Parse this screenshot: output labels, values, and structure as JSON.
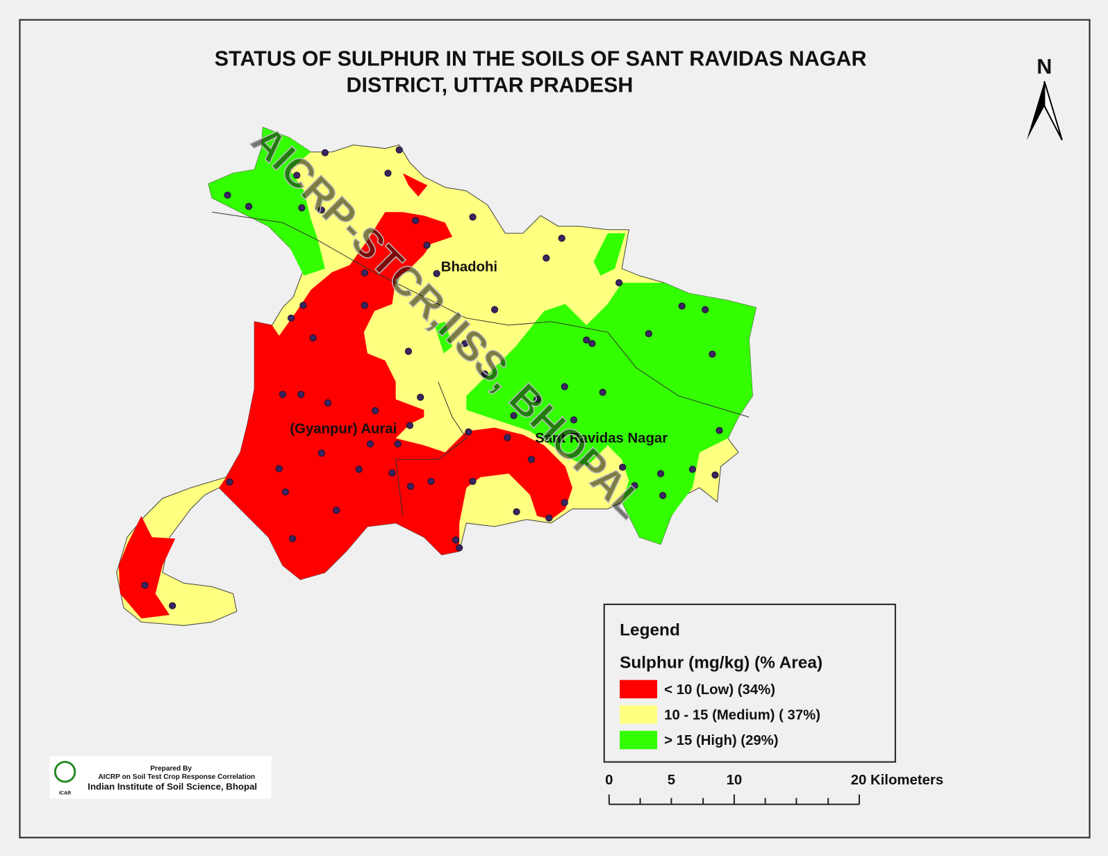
{
  "title": {
    "line1": "STATUS OF SULPHUR   IN THE  SOILS  OF SANT RAVIDAS NAGAR",
    "line2": "DISTRICT, UTTAR PRADESH"
  },
  "north": "N",
  "watermark": "AICRP-STCR,IISS, BHOPAL",
  "places": [
    "Bhadohi",
    "(Gyanpur) Aurai",
    "Sant Ravidas Nagar"
  ],
  "legend": {
    "title": "Legend",
    "subtitle": "Sulphur  (mg/kg) (% Area)",
    "items": [
      {
        "label": "< 10 (Low) (34%)",
        "color": "#ff0000"
      },
      {
        "label": "10 - 15 (Medium) ( 37%)",
        "color": "#ffff80"
      },
      {
        "label": "> 15 (High) (29%)",
        "color": "#33ff00"
      }
    ]
  },
  "scale": {
    "labels": [
      "0",
      "5",
      "10",
      "20 Kilometers"
    ]
  },
  "credit": {
    "prepared": "Prepared By",
    "project": "AICRP on Soil Test Crop Response Correlation",
    "institute": "Indian Institute of Soil Science, Bhopal",
    "logo": "ICAR"
  }
}
